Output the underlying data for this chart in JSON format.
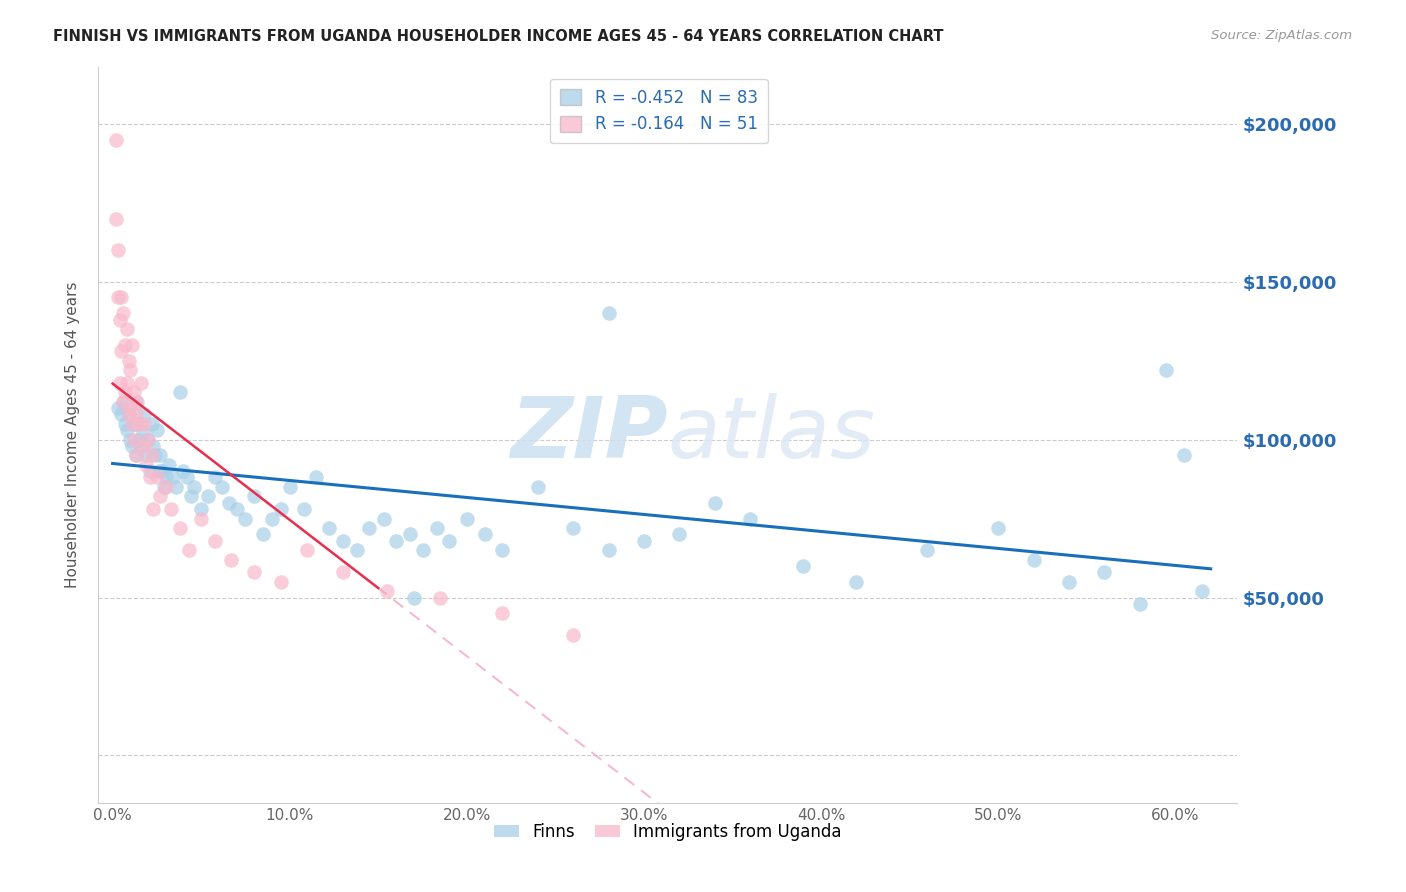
{
  "title": "FINNISH VS IMMIGRANTS FROM UGANDA HOUSEHOLDER INCOME AGES 45 - 64 YEARS CORRELATION CHART",
  "source": "Source: ZipAtlas.com",
  "ylabel": "Householder Income Ages 45 - 64 years",
  "xlim": [
    -0.008,
    0.635
  ],
  "ylim": [
    -15000,
    218000
  ],
  "yticks": [
    0,
    50000,
    100000,
    150000,
    200000
  ],
  "ytick_labels": [
    "",
    "$50,000",
    "$100,000",
    "$150,000",
    "$200,000"
  ],
  "xticks": [
    0.0,
    0.1,
    0.2,
    0.3,
    0.4,
    0.5,
    0.6
  ],
  "xtick_labels": [
    "0.0%",
    "10.0%",
    "20.0%",
    "30.0%",
    "40.0%",
    "50.0%",
    "60.0%"
  ],
  "legend1_label": "R = -0.452   N = 83",
  "legend2_label": "R = -0.164   N = 51",
  "bottom_label1": "Finns",
  "bottom_label2": "Immigrants from Uganda",
  "color_blue": "#a8cfe8",
  "color_pink": "#f9b8cb",
  "color_blue_line": "#1a6fba",
  "color_pink_line": "#e8304e",
  "color_pink_dash": "#f0a0b5",
  "watermark_zip": "ZIP",
  "watermark_atlas": "atlas",
  "finns_x": [
    0.003,
    0.005,
    0.006,
    0.007,
    0.008,
    0.009,
    0.01,
    0.011,
    0.012,
    0.013,
    0.013,
    0.014,
    0.015,
    0.016,
    0.017,
    0.018,
    0.019,
    0.02,
    0.021,
    0.022,
    0.023,
    0.024,
    0.025,
    0.026,
    0.027,
    0.028,
    0.029,
    0.03,
    0.032,
    0.034,
    0.036,
    0.038,
    0.04,
    0.042,
    0.044,
    0.046,
    0.05,
    0.054,
    0.058,
    0.062,
    0.066,
    0.07,
    0.075,
    0.08,
    0.085,
    0.09,
    0.095,
    0.1,
    0.108,
    0.115,
    0.122,
    0.13,
    0.138,
    0.145,
    0.153,
    0.16,
    0.168,
    0.175,
    0.183,
    0.19,
    0.2,
    0.21,
    0.22,
    0.24,
    0.26,
    0.28,
    0.3,
    0.32,
    0.34,
    0.36,
    0.39,
    0.42,
    0.46,
    0.5,
    0.52,
    0.54,
    0.56,
    0.58,
    0.595,
    0.605,
    0.615,
    0.28,
    0.17
  ],
  "finns_y": [
    110000,
    108000,
    112000,
    105000,
    103000,
    108000,
    100000,
    98000,
    105000,
    95000,
    112000,
    105000,
    100000,
    98000,
    102000,
    108000,
    95000,
    100000,
    90000,
    105000,
    98000,
    95000,
    103000,
    90000,
    95000,
    90000,
    85000,
    88000,
    92000,
    88000,
    85000,
    115000,
    90000,
    88000,
    82000,
    85000,
    78000,
    82000,
    88000,
    85000,
    80000,
    78000,
    75000,
    82000,
    70000,
    75000,
    78000,
    85000,
    78000,
    88000,
    72000,
    68000,
    65000,
    72000,
    75000,
    68000,
    70000,
    65000,
    72000,
    68000,
    75000,
    70000,
    65000,
    85000,
    72000,
    65000,
    68000,
    70000,
    80000,
    75000,
    60000,
    55000,
    65000,
    72000,
    62000,
    55000,
    58000,
    48000,
    122000,
    95000,
    52000,
    140000,
    50000
  ],
  "uganda_x": [
    0.002,
    0.002,
    0.003,
    0.003,
    0.004,
    0.004,
    0.005,
    0.005,
    0.006,
    0.006,
    0.007,
    0.007,
    0.008,
    0.008,
    0.009,
    0.009,
    0.01,
    0.01,
    0.011,
    0.011,
    0.012,
    0.012,
    0.013,
    0.013,
    0.014,
    0.015,
    0.016,
    0.017,
    0.018,
    0.019,
    0.02,
    0.021,
    0.022,
    0.023,
    0.025,
    0.027,
    0.03,
    0.033,
    0.038,
    0.043,
    0.05,
    0.058,
    0.067,
    0.08,
    0.095,
    0.11,
    0.13,
    0.155,
    0.185,
    0.22,
    0.26
  ],
  "uganda_y": [
    195000,
    170000,
    160000,
    145000,
    138000,
    118000,
    145000,
    128000,
    112000,
    140000,
    130000,
    115000,
    135000,
    118000,
    125000,
    108000,
    122000,
    110000,
    130000,
    105000,
    115000,
    100000,
    108000,
    95000,
    112000,
    105000,
    118000,
    98000,
    105000,
    92000,
    100000,
    88000,
    95000,
    78000,
    88000,
    82000,
    85000,
    78000,
    72000,
    65000,
    75000,
    68000,
    62000,
    58000,
    55000,
    65000,
    58000,
    52000,
    50000,
    45000,
    38000
  ]
}
